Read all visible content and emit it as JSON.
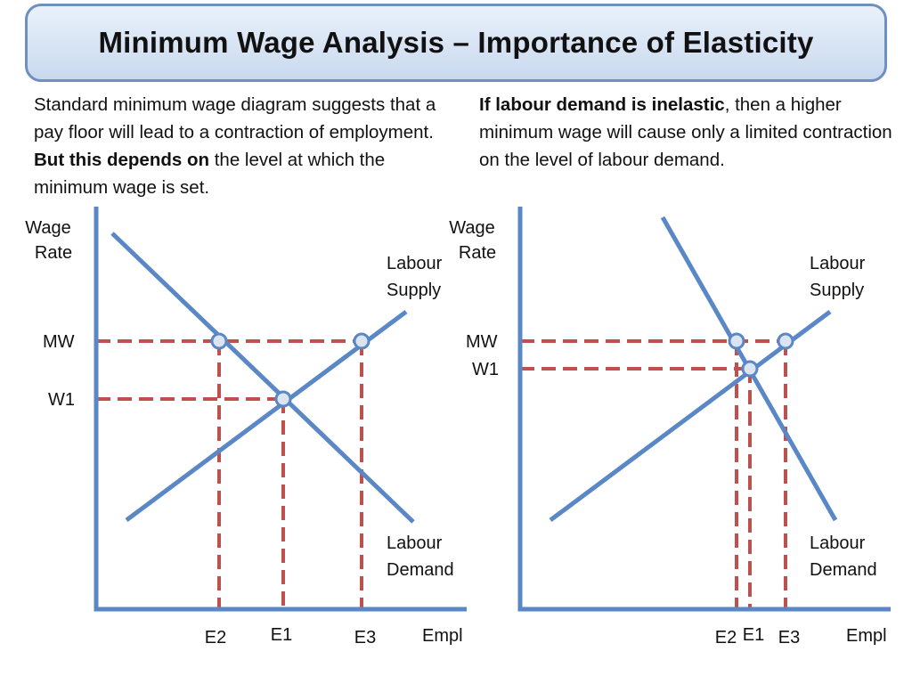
{
  "title": "Minimum Wage Analysis – Importance of Elasticity",
  "left_text": {
    "part1": "Standard minimum wage diagram suggests that a pay floor will lead to a contraction of employment. ",
    "bold": "But this depends on",
    "part2": " the level at which the minimum wage is set."
  },
  "right_text": {
    "bold": "If labour demand is inelastic",
    "part2": ", then a higher minimum wage will cause only a limited contraction on the level of labour demand."
  },
  "colors": {
    "curve": "#5a87c5",
    "dashed": "#c0504d",
    "point_fill": "#dbe5f1",
    "title_border": "#6f8fbf"
  },
  "left_diagram": {
    "y_axis_label": [
      "Wage",
      "Rate"
    ],
    "x_axis_label": "Empl",
    "supply_label": [
      "Labour",
      "Supply"
    ],
    "demand_label": [
      "Labour",
      "Demand"
    ],
    "wage_labels": [
      "MW",
      "W1"
    ],
    "employment_labels": [
      "E2",
      "E1",
      "E3"
    ]
  },
  "right_diagram": {
    "y_axis_label": [
      "Wage",
      "Rate"
    ],
    "x_axis_label": "Empl",
    "supply_label": [
      "Labour",
      "Supply"
    ],
    "demand_label": [
      "Labour",
      "Demand"
    ],
    "wage_labels": [
      "MW",
      "W1"
    ],
    "employment_labels": [
      "E2",
      "E1",
      "E3"
    ]
  }
}
